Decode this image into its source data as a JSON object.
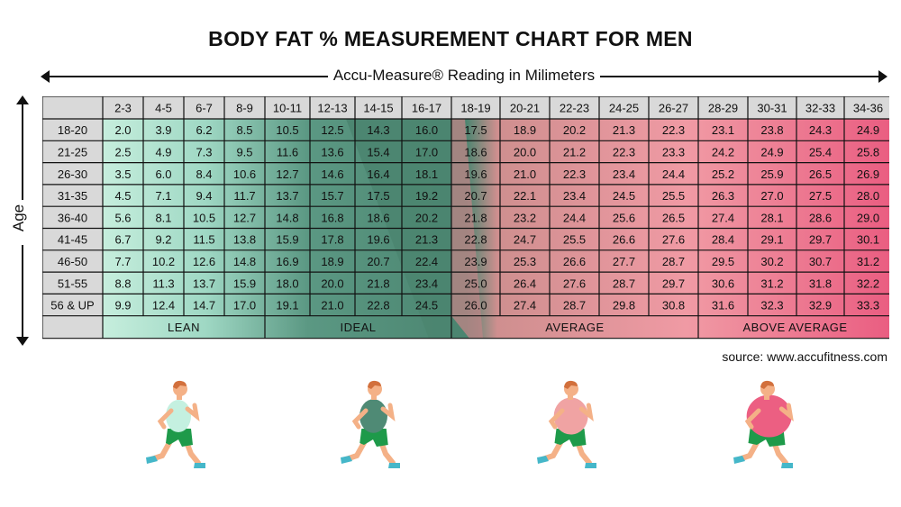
{
  "chart_data": {
    "type": "table",
    "title": "BODY FAT % MEASUREMENT CHART FOR MEN",
    "xlabel": "Accu-Measure® Reading in Milimeters",
    "ylabel": "Age",
    "columns": [
      "2-3",
      "4-5",
      "6-7",
      "8-9",
      "10-11",
      "12-13",
      "14-15",
      "16-17",
      "18-19",
      "20-21",
      "22-23",
      "24-25",
      "26-27",
      "28-29",
      "30-31",
      "32-33",
      "34-36"
    ],
    "rows": [
      {
        "age": "18-20",
        "values": [
          2.0,
          3.9,
          6.2,
          8.5,
          10.5,
          12.5,
          14.3,
          16.0,
          17.5,
          18.9,
          20.2,
          21.3,
          22.3,
          23.1,
          23.8,
          24.3,
          24.9
        ]
      },
      {
        "age": "21-25",
        "values": [
          2.5,
          4.9,
          7.3,
          9.5,
          11.6,
          13.6,
          15.4,
          17.0,
          18.6,
          20.0,
          21.2,
          22.3,
          23.3,
          24.2,
          24.9,
          25.4,
          25.8
        ]
      },
      {
        "age": "26-30",
        "values": [
          3.5,
          6.0,
          8.4,
          10.6,
          12.7,
          14.6,
          16.4,
          18.1,
          19.6,
          21.0,
          22.3,
          23.4,
          24.4,
          25.2,
          25.9,
          26.5,
          26.9
        ]
      },
      {
        "age": "31-35",
        "values": [
          4.5,
          7.1,
          9.4,
          11.7,
          13.7,
          15.7,
          17.5,
          19.2,
          20.7,
          22.1,
          23.4,
          24.5,
          25.5,
          26.3,
          27.0,
          27.5,
          28.0
        ]
      },
      {
        "age": "36-40",
        "values": [
          5.6,
          8.1,
          10.5,
          12.7,
          14.8,
          16.8,
          18.6,
          20.2,
          21.8,
          23.2,
          24.4,
          25.6,
          26.5,
          27.4,
          28.1,
          28.6,
          29.0
        ]
      },
      {
        "age": "41-45",
        "values": [
          6.7,
          9.2,
          11.5,
          13.8,
          15.9,
          17.8,
          19.6,
          21.3,
          22.8,
          24.7,
          25.5,
          26.6,
          27.6,
          28.4,
          29.1,
          29.7,
          30.1
        ]
      },
      {
        "age": "46-50",
        "values": [
          7.7,
          10.2,
          12.6,
          14.8,
          16.9,
          18.9,
          20.7,
          22.4,
          23.9,
          25.3,
          26.6,
          27.7,
          28.7,
          29.5,
          30.2,
          30.7,
          31.2
        ]
      },
      {
        "age": "51-55",
        "values": [
          8.8,
          11.3,
          13.7,
          15.9,
          18.0,
          20.0,
          21.8,
          23.4,
          25.0,
          26.4,
          27.6,
          28.7,
          29.7,
          30.6,
          31.2,
          31.8,
          32.2
        ]
      },
      {
        "age": "56 & UP",
        "values": [
          9.9,
          12.4,
          14.7,
          17.0,
          19.1,
          21.0,
          22.8,
          24.5,
          26.0,
          27.4,
          28.7,
          29.8,
          30.8,
          31.6,
          32.3,
          32.9,
          33.3
        ]
      }
    ],
    "categories": [
      {
        "label": "LEAN",
        "from": 0,
        "to": 4,
        "color": "#c8efdf"
      },
      {
        "label": "IDEAL",
        "from": 4,
        "to": 8,
        "color": "#4f8a75"
      },
      {
        "label": "AVERAGE",
        "from": 8,
        "to": 13,
        "color": "#e9a0a0"
      },
      {
        "label": "ABOVE AVERAGE",
        "from": 13,
        "to": 17,
        "color": "#ec5f82"
      }
    ]
  },
  "source": "source: www.accufitness.com",
  "runners": [
    {
      "name": "lean-runner",
      "shirt": "#c4f0e0"
    },
    {
      "name": "ideal-runner",
      "shirt": "#4f8a75"
    },
    {
      "name": "average-runner",
      "shirt": "#f0a3a3"
    },
    {
      "name": "above-average-runner",
      "shirt": "#ec5f82"
    }
  ],
  "colors": {
    "header": "#d9d9d9",
    "skin": "#f4b187",
    "shorts": "#1e9a4a",
    "shoes": "#45b7c9",
    "hair": "#d2703c"
  }
}
